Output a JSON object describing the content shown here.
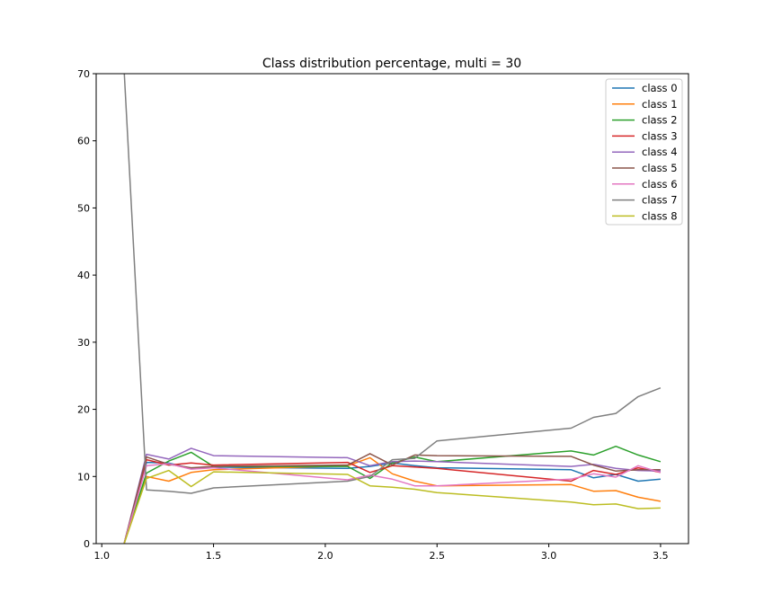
{
  "chart_data": {
    "type": "line",
    "title": "Class distribution percentage, multi = 30",
    "xlabel": "",
    "ylabel": "",
    "xlim": [
      0.975,
      3.625
    ],
    "ylim": [
      0,
      70
    ],
    "xticks": [
      "1.0",
      "1.5",
      "2.0",
      "2.5",
      "3.0",
      "3.5"
    ],
    "yticks": [
      "0",
      "10",
      "20",
      "30",
      "40",
      "50",
      "60",
      "70"
    ],
    "grid": false,
    "legend_position": "top-right",
    "x": [
      1.1,
      1.2,
      1.3,
      1.4,
      1.5,
      2.1,
      2.2,
      2.3,
      2.4,
      2.5,
      3.1,
      3.2,
      3.3,
      3.4,
      3.5
    ],
    "series": [
      {
        "name": "class 0",
        "color": "#1f77b4",
        "values": [
          0,
          12.1,
          12.0,
          11.2,
          11.4,
          11.2,
          11.5,
          12.0,
          11.6,
          11.3,
          11.0,
          9.8,
          10.3,
          9.3,
          9.6
        ]
      },
      {
        "name": "class 1",
        "color": "#ff7f0e",
        "values": [
          0,
          10.0,
          9.3,
          10.6,
          11.0,
          11.6,
          12.8,
          10.4,
          9.3,
          8.6,
          8.8,
          7.8,
          7.9,
          6.9,
          6.3
        ]
      },
      {
        "name": "class 2",
        "color": "#2ca02c",
        "values": [
          0,
          10.5,
          12.3,
          13.6,
          11.5,
          11.5,
          9.7,
          12.0,
          12.9,
          12.2,
          13.8,
          13.2,
          14.5,
          13.2,
          12.2
        ]
      },
      {
        "name": "class 3",
        "color": "#d62728",
        "values": [
          0,
          12.5,
          11.7,
          12.0,
          11.7,
          12.1,
          10.6,
          11.6,
          11.4,
          11.2,
          9.3,
          10.9,
          10.3,
          11.3,
          10.6
        ]
      },
      {
        "name": "class 4",
        "color": "#9467bd",
        "values": [
          0,
          13.3,
          12.6,
          14.2,
          13.1,
          12.8,
          11.6,
          12.2,
          12.3,
          12.2,
          11.5,
          11.8,
          11.2,
          10.9,
          10.8
        ]
      },
      {
        "name": "class 5",
        "color": "#8c564b",
        "values": [
          0,
          12.9,
          11.8,
          11.3,
          11.5,
          11.7,
          13.4,
          11.7,
          13.2,
          13.1,
          13.0,
          11.7,
          10.8,
          11.0,
          11.0
        ]
      },
      {
        "name": "class 6",
        "color": "#e377c2",
        "values": [
          0,
          11.6,
          11.9,
          11.1,
          11.3,
          9.5,
          10.2,
          9.6,
          8.6,
          8.6,
          9.6,
          10.4,
          9.9,
          11.6,
          10.6
        ]
      },
      {
        "name": "class 7",
        "color": "#7f7f7f",
        "values": [
          70.5,
          8.0,
          7.8,
          7.5,
          8.3,
          9.3,
          10.0,
          12.5,
          12.7,
          15.3,
          17.2,
          18.8,
          19.4,
          21.9,
          23.2
        ]
      },
      {
        "name": "class 8",
        "color": "#bcbd22",
        "values": [
          0,
          9.7,
          10.9,
          8.5,
          10.7,
          10.3,
          8.6,
          8.4,
          8.1,
          7.6,
          6.2,
          5.8,
          5.9,
          5.2,
          5.3
        ]
      }
    ]
  }
}
